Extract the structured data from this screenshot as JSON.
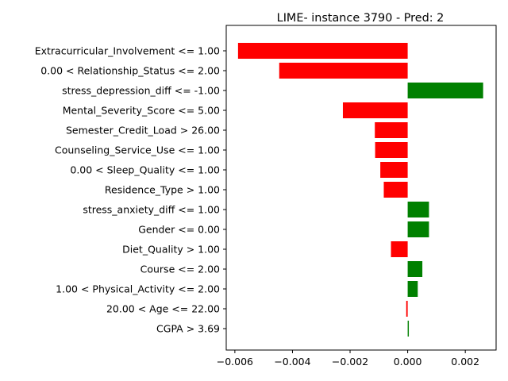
{
  "chart_data": {
    "type": "bar",
    "orientation": "horizontal",
    "title": "LIME- instance 3790 - Pred: 2",
    "xlabel": "",
    "ylabel": "",
    "categories": [
      "Extracurricular_Involvement <= 1.00",
      "0.00 < Relationship_Status <= 2.00",
      "stress_depression_diff <= -1.00",
      "Mental_Severity_Score <= 5.00",
      "Semester_Credit_Load > 26.00",
      "Counseling_Service_Use <= 1.00",
      "0.00 < Sleep_Quality <= 1.00",
      "Residence_Type > 1.00",
      "stress_anxiety_diff <= 1.00",
      "Gender <= 0.00",
      "Diet_Quality > 1.00",
      "Course <= 2.00",
      "1.00 < Physical_Activity <= 2.00",
      "20.00 < Age <= 22.00",
      "CGPA > 3.69"
    ],
    "values": [
      -0.00589,
      -0.00446,
      0.00262,
      -0.00225,
      -0.00114,
      -0.00113,
      -0.00095,
      -0.00083,
      0.00074,
      0.00074,
      -0.00058,
      0.00051,
      0.00035,
      -5e-05,
      4e-05
    ],
    "xlim": [
      -0.0063,
      0.00307
    ],
    "xticks": [
      -0.006,
      -0.004,
      -0.002,
      0.0,
      0.002
    ],
    "xtick_labels": [
      "−0.006",
      "−0.004",
      "−0.002",
      "0.000",
      "0.002"
    ],
    "grid": false,
    "colors": {
      "positive": "#008000",
      "negative": "#ff0000"
    }
  }
}
